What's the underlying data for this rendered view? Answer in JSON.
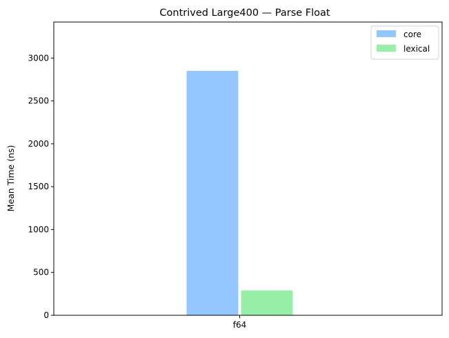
{
  "chart_data": {
    "type": "bar",
    "title": "Contrived Large400 — Parse Float",
    "xlabel": "",
    "ylabel": "Mean Time (ns)",
    "categories": [
      "f64"
    ],
    "ylim": [
      0,
      3420
    ],
    "yticks": [
      0,
      500,
      1000,
      1500,
      2000,
      2500,
      3000
    ],
    "grid": false,
    "legend_position": "top-right",
    "series": [
      {
        "name": "core",
        "color": "#94c6ff",
        "values": [
          2850
        ]
      },
      {
        "name": "lexical",
        "color": "#98f0a8",
        "values": [
          290
        ]
      }
    ]
  }
}
